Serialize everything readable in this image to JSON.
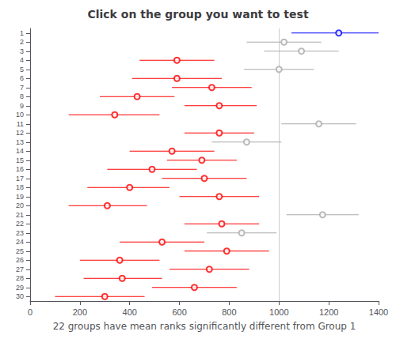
{
  "chart_data": {
    "type": "interval",
    "title": "Click on the group you want to test",
    "xlabel": "22 groups have mean ranks significantly different from Group 1",
    "xlim": [
      0,
      1400
    ],
    "xticks": [
      0,
      200,
      400,
      600,
      800,
      1000,
      1200,
      1400
    ],
    "ylim": [
      30.5,
      0.5
    ],
    "yticks": [
      1,
      2,
      3,
      4,
      5,
      6,
      7,
      8,
      9,
      10,
      11,
      12,
      13,
      14,
      15,
      16,
      17,
      18,
      19,
      20,
      21,
      22,
      23,
      24,
      25,
      26,
      27,
      28,
      29,
      30
    ],
    "grid": false,
    "marker": "open_circle",
    "vline": 1000,
    "groups": [
      1,
      2,
      3,
      4,
      5,
      6,
      7,
      8,
      9,
      10,
      11,
      12,
      13,
      14,
      15,
      16,
      17,
      18,
      19,
      20,
      21,
      22,
      23,
      24,
      25,
      26,
      27,
      28,
      29,
      30
    ],
    "centers": [
      1240,
      1020,
      1090,
      590,
      1000,
      590,
      730,
      430,
      760,
      340,
      1160,
      760,
      870,
      570,
      690,
      490,
      700,
      400,
      760,
      310,
      1175,
      770,
      850,
      530,
      790,
      360,
      720,
      370,
      660,
      300
    ],
    "lefts": [
      1050,
      870,
      940,
      440,
      860,
      410,
      570,
      280,
      620,
      155,
      1010,
      620,
      730,
      400,
      550,
      310,
      530,
      230,
      600,
      155,
      1030,
      620,
      710,
      360,
      620,
      200,
      560,
      215,
      490,
      100
    ],
    "rights": [
      1400,
      1170,
      1240,
      740,
      1140,
      770,
      890,
      580,
      910,
      520,
      1310,
      900,
      1010,
      740,
      830,
      670,
      870,
      560,
      920,
      470,
      1320,
      920,
      990,
      700,
      960,
      520,
      880,
      530,
      830,
      460
    ],
    "colors": [
      "#0000FF",
      "#AAAAAA",
      "#AAAAAA",
      "#FF0000",
      "#AAAAAA",
      "#FF0000",
      "#FF0000",
      "#FF0000",
      "#FF0000",
      "#FF0000",
      "#AAAAAA",
      "#FF0000",
      "#AAAAAA",
      "#FF0000",
      "#FF0000",
      "#FF0000",
      "#FF0000",
      "#FF0000",
      "#FF0000",
      "#FF0000",
      "#AAAAAA",
      "#FF0000",
      "#AAAAAA",
      "#FF0000",
      "#FF0000",
      "#FF0000",
      "#FF0000",
      "#FF0000",
      "#FF0000",
      "#FF0000"
    ]
  }
}
